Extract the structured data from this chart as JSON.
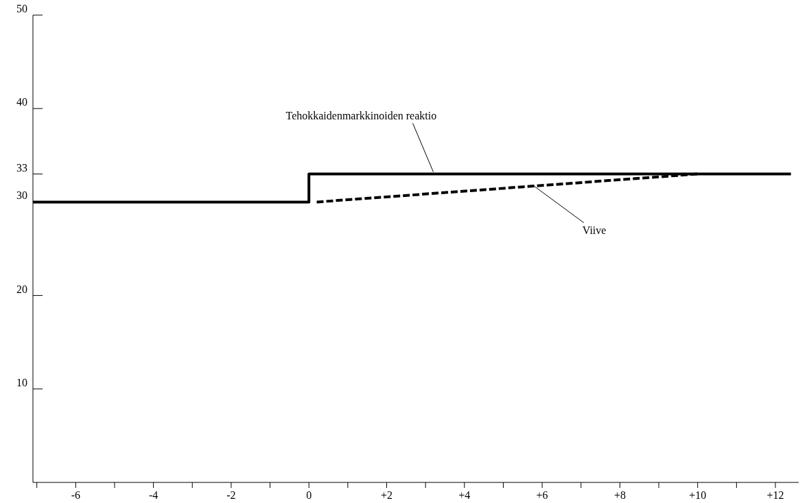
{
  "chart_data": {
    "type": "line",
    "xlim": [
      -7.1,
      12.6
    ],
    "ylim": [
      0,
      50
    ],
    "xticks": [
      {
        "value": -7,
        "label": null
      },
      -6,
      {
        "value": -5,
        "label": null
      },
      -4,
      {
        "value": -3,
        "label": null
      },
      -2,
      {
        "value": -1,
        "label": null
      },
      0,
      {
        "value": 1,
        "label": null
      },
      {
        "value": 2,
        "label": "+2"
      },
      {
        "value": 3,
        "label": null
      },
      {
        "value": 4,
        "label": "+4"
      },
      {
        "value": 5,
        "label": null
      },
      {
        "value": 6,
        "label": "+6"
      },
      {
        "value": 7,
        "label": null
      },
      {
        "value": 8,
        "label": "+8"
      },
      {
        "value": 9,
        "label": null
      },
      {
        "value": 10,
        "label": "+10"
      },
      {
        "value": 11,
        "label": null
      },
      {
        "value": 12,
        "label": "+12"
      }
    ],
    "yticks": [
      10,
      20,
      30,
      33,
      40,
      50
    ],
    "grid": false,
    "marker": "none",
    "series": [
      {
        "color": "#000000",
        "line_style": "solid",
        "x": [
          -7.1,
          0,
          0,
          12.4
        ],
        "values": [
          30,
          30,
          33,
          33
        ]
      },
      {
        "color": "#000000",
        "line_style": "dashed",
        "x": [
          0.2,
          10
        ],
        "values": [
          30,
          33
        ]
      }
    ],
    "annotations": [
      {
        "text": "Tehokkaidenmarkkinoiden reaktio",
        "x": 3.2,
        "y": 33
      },
      {
        "text": "Viive",
        "x": 5.8,
        "y": 31.9
      }
    ]
  }
}
